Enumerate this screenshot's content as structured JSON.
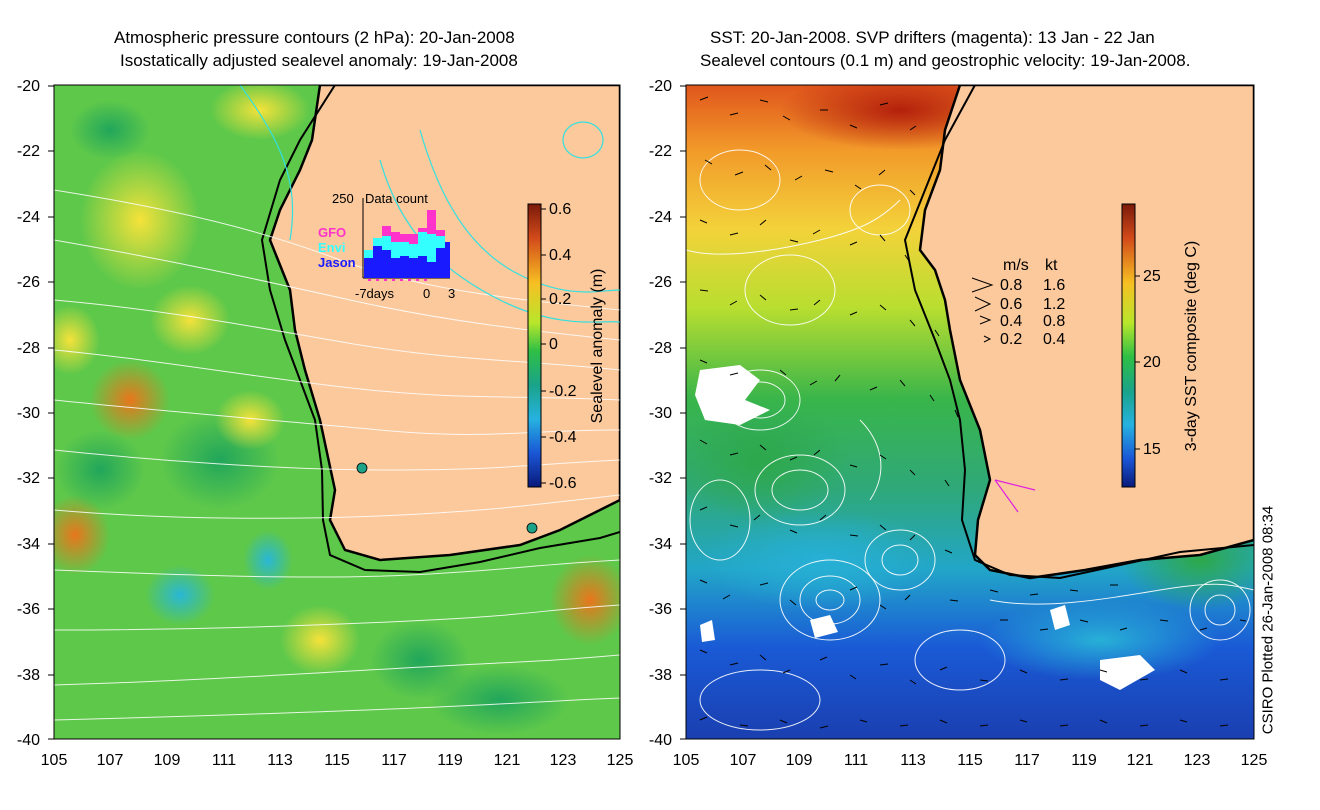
{
  "left": {
    "title_line1": "Atmospheric pressure contours (2 hPa): 20-Jan-2008",
    "title_line2": "Isostatically adjusted sealevel anomaly: 19-Jan-2008",
    "lat_labels": [
      "-20",
      "-22",
      "-24",
      "-26",
      "-28",
      "-30",
      "-32",
      "-34",
      "-36",
      "-38",
      "-40"
    ],
    "lon_labels": [
      "105",
      "107",
      "109",
      "111",
      "113",
      "115",
      "117",
      "119",
      "121",
      "123",
      "125"
    ],
    "colorbar": {
      "label": "Sealevel anomaly (m)",
      "ticks": [
        "0.6",
        "0.4",
        "0.2",
        "0",
        "-0.2",
        "-0.4",
        "-0.6"
      ]
    },
    "inset": {
      "y_max": "250",
      "title": "Data count",
      "legend": [
        "GFO",
        "Envi",
        "Jason"
      ],
      "legend_colors": [
        "#ff33cc",
        "#33ffff",
        "#1a1aff"
      ],
      "x_labels": [
        "-7days",
        "0",
        "3"
      ]
    }
  },
  "right": {
    "title_line1": "SST: 20-Jan-2008. SVP drifters (magenta): 13 Jan - 22 Jan",
    "title_line2": "Sealevel contours (0.1 m) and geostrophic velocity: 19-Jan-2008.",
    "lat_labels": [
      "-20",
      "-22",
      "-24",
      "-26",
      "-28",
      "-30",
      "-32",
      "-34",
      "-36",
      "-38",
      "-40"
    ],
    "lon_labels": [
      "105",
      "107",
      "109",
      "111",
      "113",
      "115",
      "117",
      "119",
      "121",
      "123",
      "125"
    ],
    "colorbar": {
      "label": "3-day SST composite (deg C)",
      "ticks": [
        "25",
        "20",
        "15"
      ]
    },
    "velocity_legend": {
      "header_ms": "m/s",
      "header_kt": "kt",
      "rows": [
        {
          "ms": "0.8",
          "kt": "1.6"
        },
        {
          "ms": "0.6",
          "kt": "1.2"
        },
        {
          "ms": "0.4",
          "kt": "0.8"
        },
        {
          "ms": "0.2",
          "kt": "0.4"
        }
      ]
    }
  },
  "credit": "CSIRO Plotted 26-Jan-2008 08:34"
}
